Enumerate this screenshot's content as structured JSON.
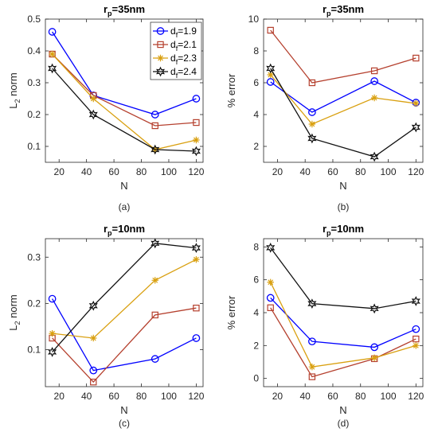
{
  "colors": {
    "df19": "#0000ff",
    "df21": "#b5402e",
    "df23": "#d9a010",
    "df24": "#111111"
  },
  "legend": {
    "position": "top-right of panel (a)",
    "entries": [
      {
        "base": "d",
        "sub": "f",
        "rest": "=1.9",
        "color": "#0000ff",
        "marker": "circle"
      },
      {
        "base": "d",
        "sub": "f",
        "rest": "=2.1",
        "color": "#b5402e",
        "marker": "square"
      },
      {
        "base": "d",
        "sub": "f",
        "rest": "=2.3",
        "color": "#d9a010",
        "marker": "asterisk"
      },
      {
        "base": "d",
        "sub": "f",
        "rest": "=2.4",
        "color": "#111111",
        "marker": "hexagram"
      }
    ]
  },
  "chart_data": [
    {
      "type": "line",
      "panel": "(a)",
      "title": {
        "base": "r",
        "sub": "p",
        "rest": "=35nm"
      },
      "xlabel": "N",
      "ylabel": {
        "base": "L",
        "sub": "2",
        "rest": " norm"
      },
      "xlim": [
        10,
        125
      ],
      "ylim": [
        0.05,
        0.5
      ],
      "xticks": [
        20,
        40,
        60,
        80,
        100,
        120
      ],
      "yticks": [
        0.1,
        0.2,
        0.3,
        0.4,
        0.5
      ],
      "ytick_labels": [
        "0.1",
        "0.2",
        "0.3",
        "0.4",
        "0.5"
      ],
      "grid": false,
      "x": [
        15,
        45,
        90,
        120
      ],
      "series": [
        {
          "name": "df=1.9",
          "values": [
            0.46,
            0.26,
            0.2,
            0.25
          ]
        },
        {
          "name": "df=2.1",
          "values": [
            0.39,
            0.26,
            0.165,
            0.175
          ]
        },
        {
          "name": "df=2.3",
          "values": [
            0.39,
            0.25,
            0.09,
            0.12
          ]
        },
        {
          "name": "df=2.4",
          "values": [
            0.345,
            0.2,
            0.09,
            0.085
          ]
        }
      ]
    },
    {
      "type": "line",
      "panel": "(b)",
      "title": {
        "base": "r",
        "sub": "p",
        "rest": "=35nm"
      },
      "xlabel": "N",
      "ylabel": {
        "base": "% error",
        "sub": "",
        "rest": ""
      },
      "xlim": [
        10,
        125
      ],
      "ylim": [
        1,
        10
      ],
      "xticks": [
        20,
        40,
        60,
        80,
        100,
        120
      ],
      "yticks": [
        2,
        4,
        6,
        8,
        10
      ],
      "ytick_labels": [
        "2",
        "4",
        "6",
        "8",
        "10"
      ],
      "grid": false,
      "x": [
        15,
        45,
        90,
        120
      ],
      "series": [
        {
          "name": "df=1.9",
          "values": [
            6.05,
            4.15,
            6.1,
            4.75
          ]
        },
        {
          "name": "df=2.1",
          "values": [
            9.3,
            6.0,
            6.75,
            7.55
          ]
        },
        {
          "name": "df=2.3",
          "values": [
            6.5,
            3.4,
            5.05,
            4.7
          ]
        },
        {
          "name": "df=2.4",
          "values": [
            6.9,
            2.5,
            1.35,
            3.2
          ]
        }
      ]
    },
    {
      "type": "line",
      "panel": "(c)",
      "title": {
        "base": "r",
        "sub": "p",
        "rest": "=10nm"
      },
      "xlabel": "N",
      "ylabel": {
        "base": "L",
        "sub": "2",
        "rest": " norm"
      },
      "xlim": [
        10,
        125
      ],
      "ylim": [
        0.02,
        0.34
      ],
      "xticks": [
        20,
        40,
        60,
        80,
        100,
        120
      ],
      "yticks": [
        0.1,
        0.2,
        0.3
      ],
      "ytick_labels": [
        "0.1",
        "0.2",
        "0.3"
      ],
      "grid": false,
      "x": [
        15,
        45,
        90,
        120
      ],
      "series": [
        {
          "name": "df=1.9",
          "values": [
            0.21,
            0.055,
            0.08,
            0.125
          ]
        },
        {
          "name": "df=2.1",
          "values": [
            0.125,
            0.03,
            0.175,
            0.19
          ]
        },
        {
          "name": "df=2.3",
          "values": [
            0.135,
            0.125,
            0.25,
            0.295
          ]
        },
        {
          "name": "df=2.4",
          "values": [
            0.095,
            0.195,
            0.33,
            0.32
          ]
        }
      ]
    },
    {
      "type": "line",
      "panel": "(d)",
      "title": {
        "base": "r",
        "sub": "p",
        "rest": "=10nm"
      },
      "xlabel": "N",
      "ylabel": {
        "base": "% error",
        "sub": "",
        "rest": ""
      },
      "xlim": [
        10,
        125
      ],
      "ylim": [
        -0.5,
        8.5
      ],
      "xticks": [
        20,
        40,
        60,
        80,
        100,
        120
      ],
      "yticks": [
        0,
        2,
        4,
        6,
        8
      ],
      "ytick_labels": [
        "0",
        "2",
        "4",
        "6",
        "8"
      ],
      "grid": false,
      "x": [
        15,
        45,
        90,
        120
      ],
      "series": [
        {
          "name": "df=1.9",
          "values": [
            4.9,
            2.25,
            1.9,
            3.0
          ]
        },
        {
          "name": "df=2.1",
          "values": [
            4.3,
            0.1,
            1.2,
            2.4
          ]
        },
        {
          "name": "df=2.3",
          "values": [
            5.85,
            0.7,
            1.25,
            2.0
          ]
        },
        {
          "name": "df=2.4",
          "values": [
            7.95,
            4.55,
            4.25,
            4.7
          ]
        }
      ]
    }
  ]
}
